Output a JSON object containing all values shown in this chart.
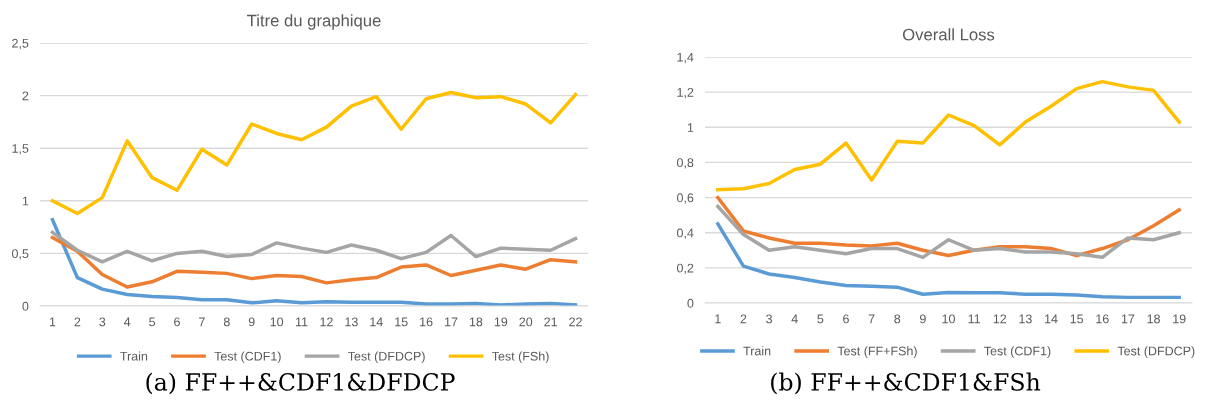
{
  "chart_data": [
    {
      "type": "line",
      "title": "Titre du graphique",
      "categories": [
        "1",
        "2",
        "3",
        "4",
        "5",
        "6",
        "7",
        "8",
        "9",
        "10",
        "11",
        "12",
        "13",
        "14",
        "15",
        "16",
        "17",
        "18",
        "19",
        "20",
        "21",
        "22"
      ],
      "series": [
        {
          "name": "Train",
          "color": "#5b9bd5",
          "values": [
            0.82,
            0.27,
            0.16,
            0.11,
            0.09,
            0.08,
            0.06,
            0.06,
            0.03,
            0.05,
            0.03,
            0.04,
            0.035,
            0.035,
            0.035,
            0.02,
            0.02,
            0.025,
            0.01,
            0.02,
            0.025,
            0.01
          ]
        },
        {
          "name": "Test (CDF1)",
          "color": "#ed7d31",
          "values": [
            0.65,
            0.52,
            0.3,
            0.18,
            0.23,
            0.33,
            0.32,
            0.31,
            0.26,
            0.29,
            0.28,
            0.22,
            0.25,
            0.27,
            0.37,
            0.39,
            0.29,
            0.34,
            0.39,
            0.35,
            0.44,
            0.42
          ]
        },
        {
          "name": "Test (DFDCP)",
          "color": "#a5a5a5",
          "values": [
            0.7,
            0.53,
            0.42,
            0.52,
            0.43,
            0.5,
            0.52,
            0.47,
            0.49,
            0.6,
            0.55,
            0.51,
            0.58,
            0.53,
            0.45,
            0.51,
            0.67,
            0.47,
            0.55,
            0.54,
            0.53,
            0.64
          ]
        },
        {
          "name": "Test (FSh)",
          "color": "#ffc000",
          "values": [
            1.0,
            0.88,
            1.03,
            1.57,
            1.22,
            1.1,
            1.49,
            1.34,
            1.73,
            1.64,
            1.58,
            1.7,
            1.9,
            1.99,
            1.68,
            1.97,
            2.03,
            1.98,
            1.99,
            1.92,
            1.74,
            2.01
          ]
        }
      ],
      "ylim": [
        0,
        2.5
      ],
      "yticks": [
        0,
        {
          "value": 0.5,
          "label": "0,5"
        },
        1,
        {
          "value": 1.5,
          "label": "1,5"
        },
        2,
        {
          "value": 2.5,
          "label": "2,5"
        }
      ],
      "grid": "y",
      "legend": "bottom",
      "annotations": [
        "(a) FF++&CDF1&DFDCP"
      ]
    },
    {
      "type": "line",
      "title": "Overall Loss",
      "categories": [
        "1",
        "2",
        "3",
        "4",
        "5",
        "6",
        "7",
        "8",
        "9",
        "10",
        "11",
        "12",
        "13",
        "14",
        "15",
        "16",
        "17",
        "18",
        "19"
      ],
      "series": [
        {
          "name": "Train",
          "color": "#5b9bd5",
          "values": [
            0.45,
            0.21,
            0.165,
            0.145,
            0.12,
            0.1,
            0.095,
            0.09,
            0.05,
            0.06,
            0.058,
            0.058,
            0.05,
            0.05,
            0.045,
            0.035,
            0.032,
            0.032,
            0.032
          ]
        },
        {
          "name": "Test (FF+FSh)",
          "color": "#ed7d31",
          "values": [
            0.6,
            0.41,
            0.37,
            0.34,
            0.34,
            0.33,
            0.325,
            0.34,
            0.3,
            0.27,
            0.3,
            0.32,
            0.32,
            0.31,
            0.27,
            0.31,
            0.36,
            0.44,
            0.53
          ]
        },
        {
          "name": "Test (CDF1)",
          "color": "#a5a5a5",
          "values": [
            0.55,
            0.39,
            0.3,
            0.32,
            0.3,
            0.28,
            0.31,
            0.31,
            0.26,
            0.36,
            0.3,
            0.31,
            0.29,
            0.29,
            0.28,
            0.26,
            0.37,
            0.36,
            0.4
          ]
        },
        {
          "name": "Test (DFDCP)",
          "color": "#ffc000",
          "values": [
            0.645,
            0.65,
            0.68,
            0.76,
            0.79,
            0.91,
            0.7,
            0.92,
            0.91,
            1.07,
            1.01,
            0.9,
            1.03,
            1.12,
            1.22,
            1.26,
            1.23,
            1.21,
            1.03
          ]
        }
      ],
      "ylim": [
        0,
        1.4
      ],
      "yticks": [
        0,
        {
          "value": 0.2,
          "label": "0,2"
        },
        {
          "value": 0.4,
          "label": "0,4"
        },
        {
          "value": 0.6,
          "label": "0,6"
        },
        {
          "value": 0.8,
          "label": "0,8"
        },
        1,
        {
          "value": 1.2,
          "label": "1,2"
        },
        {
          "value": 1.4,
          "label": "1,4"
        }
      ],
      "grid": "y",
      "legend": "bottom",
      "annotations": [
        "(b) FF++&CDF1&FSh"
      ]
    }
  ]
}
